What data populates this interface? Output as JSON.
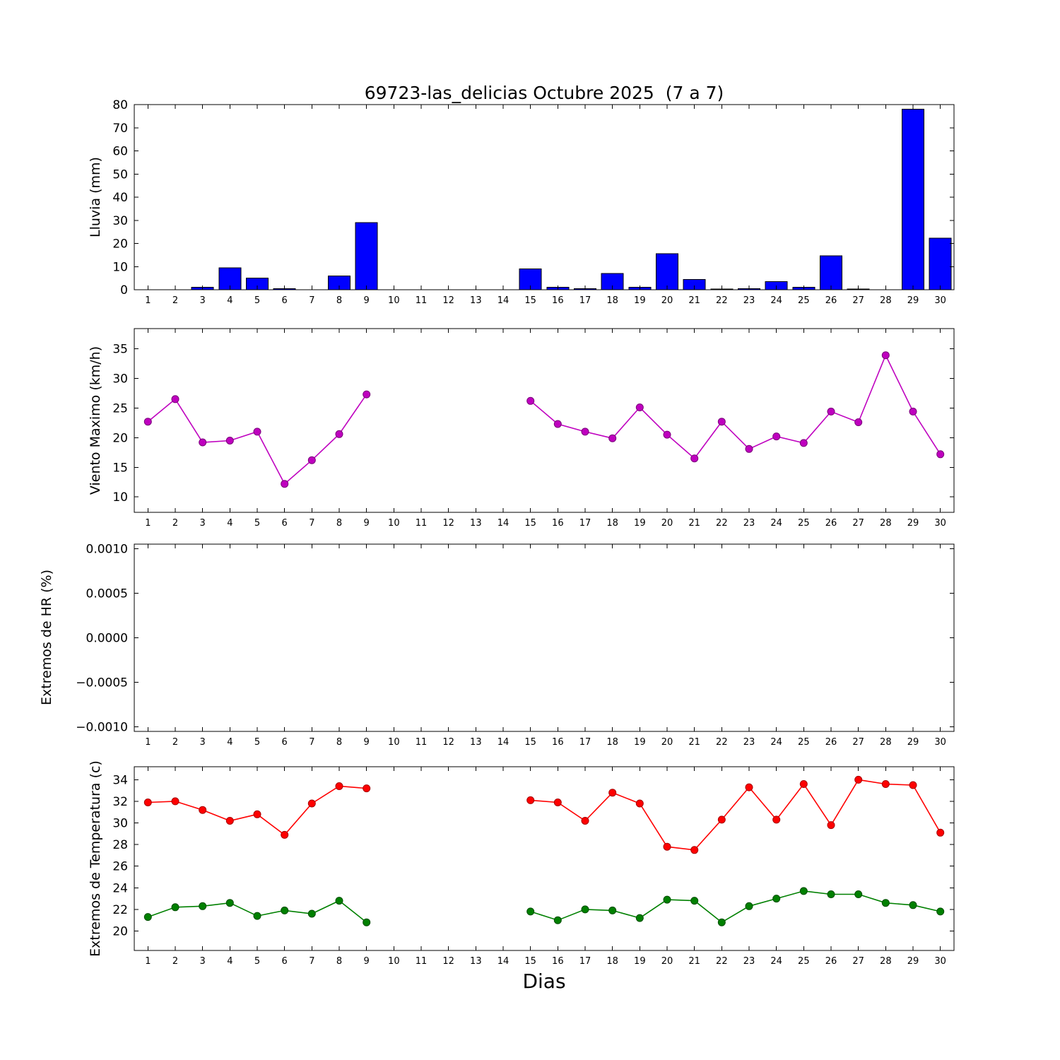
{
  "figure": {
    "title": "69723-las_delicias Octubre 2025  (7 a 7)",
    "xlabel": "Dias",
    "background": "#ffffff",
    "text_color": "#000000"
  },
  "days": [
    1,
    2,
    3,
    4,
    5,
    6,
    7,
    8,
    9,
    10,
    11,
    12,
    13,
    14,
    15,
    16,
    17,
    18,
    19,
    20,
    21,
    22,
    23,
    24,
    25,
    26,
    27,
    28,
    29,
    30
  ],
  "chart_data": [
    {
      "id": "lluvia",
      "type": "bar",
      "ylabel": "Lluvia (mm)",
      "color": "#0000ff",
      "edge_color": "#000000",
      "xlim": [
        0.5,
        30.5
      ],
      "ylim": [
        0,
        80
      ],
      "yticks": {
        "values": [
          0,
          10,
          20,
          30,
          40,
          50,
          60,
          70,
          80
        ],
        "labels": [
          "0",
          "10",
          "20",
          "30",
          "40",
          "50",
          "60",
          "70",
          "80"
        ]
      },
      "values": [
        0,
        0,
        1,
        9.5,
        5,
        0.5,
        0,
        6,
        29,
        null,
        null,
        null,
        null,
        null,
        9,
        1,
        0.5,
        7,
        1,
        15.5,
        4.5,
        0.3,
        0.5,
        3.5,
        1,
        14.7,
        0.3,
        0,
        78,
        22.3
      ]
    },
    {
      "id": "viento",
      "type": "line",
      "ylabel": "Viento Maximo (km/h)",
      "xlim": [
        0.5,
        30.5
      ],
      "ylim": [
        7.4,
        38.4
      ],
      "yticks": {
        "values": [
          10,
          15,
          20,
          25,
          30,
          35
        ],
        "labels": [
          "10",
          "15",
          "20",
          "25",
          "30",
          "35"
        ]
      },
      "series": [
        {
          "name": "viento-maximo",
          "color": "#bf00bf",
          "edge": "#7a007a",
          "values": [
            22.7,
            26.5,
            19.2,
            19.5,
            21,
            12.2,
            16.2,
            20.6,
            27.3,
            null,
            null,
            null,
            null,
            null,
            26.2,
            22.3,
            21,
            19.9,
            25.1,
            20.5,
            16.5,
            22.7,
            18.1,
            20.2,
            19.1,
            24.4,
            22.6,
            33.9,
            24.4,
            17.2
          ]
        }
      ]
    },
    {
      "id": "hr",
      "type": "line",
      "ylabel": "Extremos de HR (%)",
      "xlim": [
        0.5,
        30.5
      ],
      "ylim": [
        -0.00105,
        0.00105
      ],
      "yticks": {
        "values": [
          -0.001,
          -0.0005,
          0,
          0.0005,
          0.001
        ],
        "labels": [
          "−0.0010",
          "−0.0005",
          "0.0000",
          "0.0005",
          "0.0010"
        ]
      },
      "series": []
    },
    {
      "id": "temperatura",
      "type": "line",
      "ylabel": "Extremos de Temperatura (c)",
      "xlim": [
        0.5,
        30.5
      ],
      "ylim": [
        18.2,
        35.2
      ],
      "yticks": {
        "values": [
          20,
          22,
          24,
          26,
          28,
          30,
          32,
          34
        ],
        "labels": [
          "20",
          "22",
          "24",
          "26",
          "28",
          "30",
          "32",
          "34"
        ]
      },
      "series": [
        {
          "name": "temperatura-maxima",
          "color": "#ff0000",
          "edge": "#a80000",
          "values": [
            31.9,
            32,
            31.2,
            30.2,
            30.8,
            28.9,
            31.8,
            33.4,
            33.2,
            null,
            null,
            null,
            null,
            null,
            32.1,
            31.9,
            30.2,
            32.8,
            31.8,
            27.8,
            27.5,
            30.3,
            33.3,
            30.3,
            33.6,
            29.8,
            34,
            33.6,
            33.5,
            29.1
          ]
        },
        {
          "name": "temperatura-minima",
          "color": "#008000",
          "edge": "#004d00",
          "values": [
            21.3,
            22.2,
            22.3,
            22.6,
            21.4,
            21.9,
            21.6,
            22.8,
            20.8,
            null,
            null,
            null,
            null,
            null,
            21.8,
            21,
            22,
            21.9,
            21.2,
            22.9,
            22.8,
            20.8,
            22.3,
            23,
            23.7,
            23.4,
            23.4,
            22.6,
            22.4,
            21.8
          ]
        }
      ]
    }
  ]
}
